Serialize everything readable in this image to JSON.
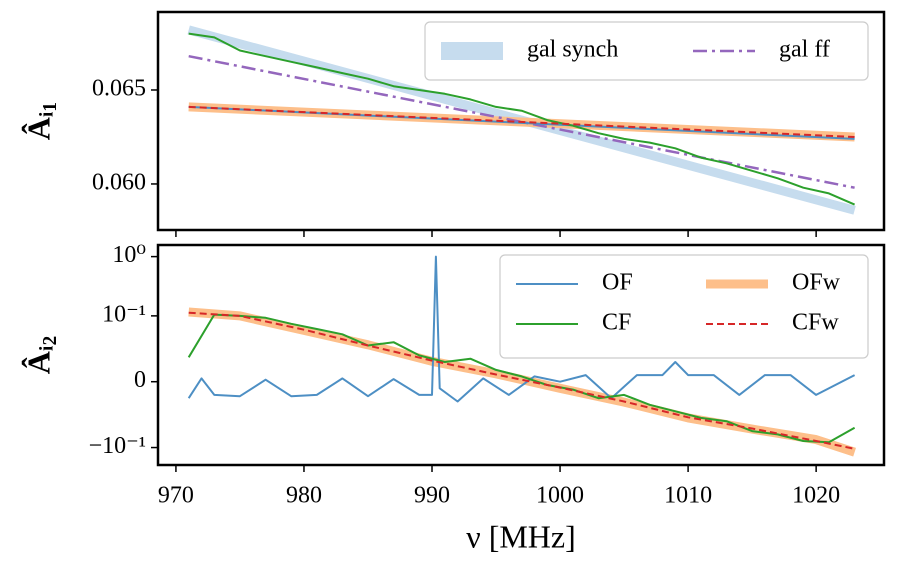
{
  "chart_data": [
    {
      "type": "line",
      "ylabel": "Âᵢ₁",
      "xlim": [
        968.6,
        1025.3
      ],
      "ylim": [
        0.05755,
        0.06915
      ],
      "xticks": [
        970,
        980,
        990,
        1000,
        1010,
        1020
      ],
      "yticks": [
        {
          "value": 0.06,
          "label": "0.060"
        },
        0.065
      ],
      "legend": "upper right",
      "legend_ncol": 2,
      "series": [
        {
          "name": "gal synch",
          "color": "#c6dcee",
          "linestyle": "wide",
          "x": [
            971,
            1023
          ],
          "values": [
            0.0682,
            0.0586
          ]
        },
        {
          "name": "gal ff",
          "color": "#9467bd",
          "linestyle": "dashdot",
          "x": [
            971,
            1023
          ],
          "values": [
            0.0668,
            0.0598
          ]
        },
        {
          "color": "#fdbf8a",
          "linestyle": "wide",
          "x": [
            971,
            1023
          ],
          "values": [
            0.0641,
            0.0625
          ]
        },
        {
          "color": "#4d8fc4",
          "linestyle": "solid",
          "x": [
            971,
            1023
          ],
          "values": [
            0.0641,
            0.0624
          ]
        },
        {
          "color": "#2ca02c",
          "linestyle": "solid",
          "x": [
            971,
            973,
            975,
            977,
            979,
            981,
            983,
            985,
            987,
            989,
            991,
            993,
            995,
            997,
            999,
            1001,
            1003,
            1005,
            1007,
            1009,
            1011,
            1013,
            1015,
            1017,
            1019,
            1021,
            1023
          ],
          "values": [
            0.068,
            0.0678,
            0.0671,
            0.0668,
            0.0665,
            0.0662,
            0.0659,
            0.0656,
            0.0652,
            0.065,
            0.0648,
            0.0645,
            0.0641,
            0.0639,
            0.0634,
            0.0631,
            0.0627,
            0.0624,
            0.0622,
            0.0619,
            0.0614,
            0.0611,
            0.0607,
            0.0603,
            0.0598,
            0.0595,
            0.0589
          ]
        },
        {
          "color": "#d62728",
          "linestyle": "dashed",
          "x": [
            971,
            1023
          ],
          "values": [
            0.0641,
            0.0625
          ]
        }
      ]
    },
    {
      "type": "line",
      "ylabel": "Âᵢ₂",
      "xlabel": "ν [MHz]",
      "xlim": [
        968.6,
        1025.3
      ],
      "ylim": [
        -0.197,
        1.57
      ],
      "yscale": "symlog",
      "linthresh": 0.1,
      "xticks": [
        970,
        980,
        990,
        1000,
        1010,
        1020
      ],
      "yticks": [
        {
          "value": -0.1,
          "label": "−10⁻¹"
        },
        0,
        {
          "value": 0.1,
          "label": "10⁻¹"
        },
        {
          "value": 1,
          "label": "10⁰"
        }
      ],
      "legend": "upper right",
      "legend_ncol": 2,
      "series": [
        {
          "name": "OF",
          "color": "#4d8fc4",
          "linestyle": "solid",
          "x": [
            971,
            972,
            973,
            975,
            977,
            979,
            981,
            983,
            985,
            987,
            989,
            990,
            990.3,
            990.6,
            992,
            994,
            996,
            998,
            1000,
            1002,
            1004,
            1006,
            1008,
            1009,
            1010,
            1012,
            1014,
            1016,
            1018,
            1020,
            1023
          ],
          "values": [
            -0.025,
            0.005,
            -0.02,
            -0.022,
            0.003,
            -0.022,
            -0.02,
            0.005,
            -0.022,
            0.004,
            -0.02,
            -0.02,
            1,
            -0.01,
            -0.03,
            0.005,
            -0.02,
            0.008,
            0.0,
            0.01,
            -0.025,
            0.01,
            0.01,
            0.03,
            0.01,
            0.01,
            -0.02,
            0.01,
            0.01,
            -0.02,
            0.01
          ]
        },
        {
          "name": "CF",
          "color": "#2ca02c",
          "linestyle": "solid",
          "x": [
            971,
            973,
            975,
            977,
            979,
            981,
            983,
            985,
            987,
            989,
            991,
            993,
            995,
            997,
            999,
            1001,
            1003,
            1005,
            1007,
            1009,
            1011,
            1013,
            1015,
            1017,
            1019,
            1021,
            1023
          ],
          "values": [
            0.037,
            0.105,
            0.1,
            0.097,
            0.088,
            0.08,
            0.072,
            0.055,
            0.06,
            0.04,
            0.03,
            0.035,
            0.018,
            0.008,
            -0.005,
            -0.012,
            -0.025,
            -0.02,
            -0.035,
            -0.045,
            -0.055,
            -0.06,
            -0.075,
            -0.08,
            -0.09,
            -0.092,
            -0.07
          ]
        },
        {
          "name": "OFw",
          "color": "#fdbf8a",
          "linestyle": "wide",
          "x": [
            971,
            975,
            980,
            985,
            990,
            995,
            1000,
            1005,
            1010,
            1015,
            1020,
            1023
          ],
          "values": [
            0.116,
            0.1,
            0.078,
            0.056,
            0.031,
            0.012,
            -0.01,
            -0.031,
            -0.055,
            -0.072,
            -0.088,
            -0.12
          ]
        },
        {
          "name": "CFw",
          "color": "#d62728",
          "linestyle": "dashed",
          "x": [
            971,
            975,
            980,
            985,
            990,
            995,
            1000,
            1005,
            1010,
            1015,
            1020,
            1023
          ],
          "values": [
            0.113,
            0.1,
            0.079,
            0.055,
            0.032,
            0.011,
            -0.009,
            -0.03,
            -0.054,
            -0.071,
            -0.09,
            -0.105
          ]
        }
      ]
    }
  ]
}
